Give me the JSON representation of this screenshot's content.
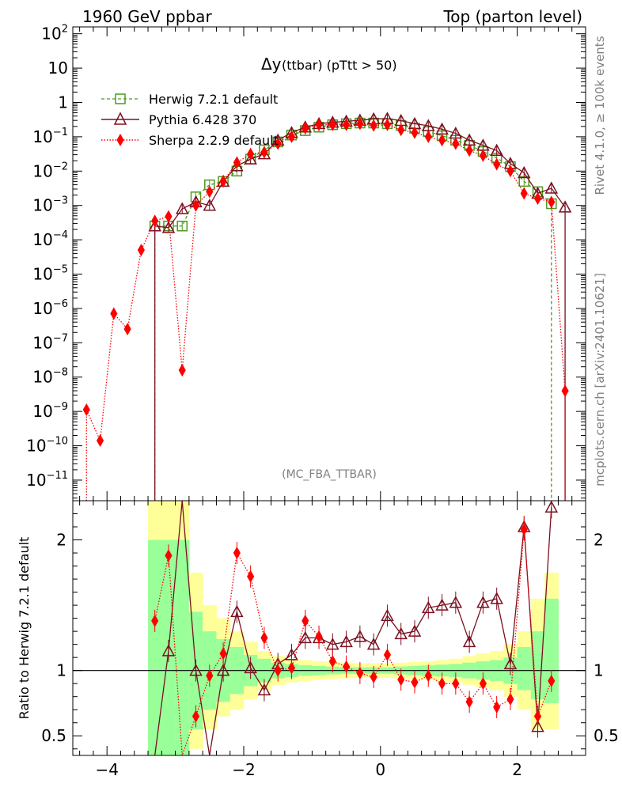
{
  "header": {
    "left": "1960 GeV ppbar",
    "right": "Top (parton level)"
  },
  "side": {
    "top": "Rivet 4.1.0, ≥ 100k events",
    "bottom": "mcplots.cern.ch [arXiv:2401.10621]"
  },
  "chart_data": [
    {
      "type": "line",
      "panel": "main",
      "title_main": "Δy",
      "title_sub": " (ttbar) (pTtt > 50)",
      "watermark": "(MC_FBA_TTBAR)",
      "yscale": "log",
      "xlim": [
        -4.5,
        3.0
      ],
      "ylim_log10": [
        -11.6,
        2.2
      ],
      "ytick_labels": [
        {
          "v": 2,
          "label": "10",
          "exp": "2"
        },
        {
          "v": 1,
          "label": "10",
          "exp": ""
        },
        {
          "v": 0,
          "label": "1",
          "exp": ""
        },
        {
          "v": -1,
          "label": "10",
          "exp": "−1"
        },
        {
          "v": -2,
          "label": "10",
          "exp": "−2"
        },
        {
          "v": -3,
          "label": "10",
          "exp": "−3"
        },
        {
          "v": -4,
          "label": "10",
          "exp": "−4"
        },
        {
          "v": -5,
          "label": "10",
          "exp": "−5"
        },
        {
          "v": -6,
          "label": "10",
          "exp": "−6"
        },
        {
          "v": -7,
          "label": "10",
          "exp": "−7"
        },
        {
          "v": -8,
          "label": "10",
          "exp": "−8"
        },
        {
          "v": -9,
          "label": "10",
          "exp": "−9"
        },
        {
          "v": -10,
          "label": "10",
          "exp": "−10"
        },
        {
          "v": -11,
          "label": "10",
          "exp": "−11"
        }
      ],
      "legend": [
        {
          "name": "Herwig 7.2.1 default",
          "color": "#4d9a1f",
          "marker": "square",
          "dash": "4,3"
        },
        {
          "name": "Pythia 6.428 370",
          "color": "#7b1020",
          "marker": "triangle",
          "dash": ""
        },
        {
          "name": "Sherpa 2.2.9 default",
          "color": "#ff0000",
          "marker": "diamond",
          "dash": "1.5,2"
        }
      ],
      "series": [
        {
          "name": "Herwig 7.2.1 default",
          "x": [
            -3.3,
            -3.1,
            -2.9,
            -2.7,
            -2.5,
            -2.3,
            -2.1,
            -1.9,
            -1.7,
            -1.5,
            -1.3,
            -1.1,
            -0.9,
            -0.7,
            -0.5,
            -0.3,
            -0.1,
            0.1,
            0.3,
            0.5,
            0.7,
            0.9,
            1.1,
            1.3,
            1.5,
            1.7,
            1.9,
            2.1,
            2.3,
            2.5
          ],
          "log10y": [
            -3.6,
            -3.6,
            -3.6,
            -2.75,
            -2.4,
            -2.3,
            -2.0,
            -1.65,
            -1.38,
            -1.15,
            -0.95,
            -0.82,
            -0.72,
            -0.65,
            -0.62,
            -0.6,
            -0.6,
            -0.62,
            -0.67,
            -0.75,
            -0.85,
            -0.97,
            -1.1,
            -1.25,
            -1.43,
            -1.62,
            -1.87,
            -2.3,
            -2.6,
            -2.95
          ]
        },
        {
          "name": "Pythia 6.428 370",
          "x": [
            -3.3,
            -3.1,
            -2.9,
            -2.7,
            -2.5,
            -2.3,
            -2.1,
            -1.9,
            -1.7,
            -1.5,
            -1.3,
            -1.1,
            -0.9,
            -0.7,
            -0.5,
            -0.3,
            -0.1,
            0.1,
            0.3,
            0.5,
            0.7,
            0.9,
            1.1,
            1.3,
            1.5,
            1.7,
            1.9,
            2.1,
            2.3,
            2.5,
            2.7
          ],
          "log10y": [
            -3.6,
            -3.65,
            -3.1,
            -2.9,
            -3.0,
            -2.3,
            -1.85,
            -1.65,
            -1.5,
            -1.1,
            -0.88,
            -0.72,
            -0.62,
            -0.58,
            -0.55,
            -0.52,
            -0.48,
            -0.47,
            -0.53,
            -0.62,
            -0.68,
            -0.78,
            -0.9,
            -1.1,
            -1.25,
            -1.4,
            -1.78,
            -2.05,
            -2.65,
            -2.5,
            -3.05
          ]
        },
        {
          "name": "Sherpa 2.2.9 default",
          "x": [
            -4.3,
            -4.1,
            -3.9,
            -3.7,
            -3.5,
            -3.3,
            -3.1,
            -2.9,
            -2.7,
            -2.5,
            -2.3,
            -2.1,
            -1.9,
            -1.7,
            -1.5,
            -1.3,
            -1.1,
            -0.9,
            -0.7,
            -0.5,
            -0.3,
            -0.1,
            0.1,
            0.3,
            0.5,
            0.7,
            0.9,
            1.1,
            1.3,
            1.5,
            1.7,
            1.9,
            2.1,
            2.3,
            2.5,
            2.7
          ],
          "log10y": [
            -8.95,
            -9.85,
            -6.15,
            -6.6,
            -4.3,
            -3.45,
            -3.32,
            -7.8,
            -3.0,
            -2.6,
            -2.3,
            -1.75,
            -1.5,
            -1.45,
            -1.2,
            -1.0,
            -0.75,
            -0.65,
            -0.65,
            -0.65,
            -0.62,
            -0.67,
            -0.65,
            -0.8,
            -0.88,
            -1.0,
            -1.1,
            -1.2,
            -1.4,
            -1.55,
            -1.8,
            -2.0,
            -2.65,
            -2.8,
            -2.9,
            -8.4
          ]
        }
      ]
    },
    {
      "type": "line",
      "panel": "ratio",
      "ylabel": "Ratio to Herwig 7.2.1 default",
      "xlim": [
        -4.5,
        3.0
      ],
      "ylim": [
        0.35,
        2.3
      ],
      "xtick_labels": [
        {
          "v": -4,
          "label": "−4"
        },
        {
          "v": -2,
          "label": "−2"
        },
        {
          "v": 0,
          "label": "0"
        },
        {
          "v": 2,
          "label": "2"
        }
      ],
      "ytick_labels": [
        {
          "v": 2,
          "label": "2"
        },
        {
          "v": 1,
          "label": "1"
        },
        {
          "v": 0.5,
          "label": "0.5"
        }
      ],
      "bands": {
        "edges": [
          -3.4,
          -3.2,
          -3.0,
          -2.8,
          -2.6,
          -2.4,
          -2.2,
          -2.0,
          -1.8,
          -1.6,
          -1.4,
          -1.2,
          -1.0,
          -0.8,
          -0.6,
          -0.4,
          -0.2,
          0.0,
          0.2,
          0.4,
          0.6,
          0.8,
          1.0,
          1.2,
          1.4,
          1.6,
          1.8,
          2.0,
          2.2,
          2.4,
          2.6
        ],
        "green_lo": [
          0.35,
          0.35,
          0.35,
          0.55,
          0.7,
          0.76,
          0.82,
          0.88,
          0.91,
          0.94,
          0.95,
          0.96,
          0.965,
          0.97,
          0.975,
          0.975,
          0.975,
          0.975,
          0.97,
          0.965,
          0.96,
          0.955,
          0.95,
          0.94,
          0.93,
          0.92,
          0.9,
          0.85,
          0.78,
          0.75
        ],
        "green_hi": [
          2.0,
          2.0,
          2.0,
          1.45,
          1.3,
          1.24,
          1.18,
          1.12,
          1.09,
          1.06,
          1.05,
          1.04,
          1.035,
          1.03,
          1.025,
          1.025,
          1.025,
          1.025,
          1.03,
          1.035,
          1.04,
          1.045,
          1.05,
          1.06,
          1.07,
          1.08,
          1.1,
          1.18,
          1.3,
          1.55
        ],
        "yellow_lo": [
          0.35,
          0.35,
          0.35,
          0.4,
          0.55,
          0.65,
          0.7,
          0.78,
          0.85,
          0.89,
          0.91,
          0.92,
          0.93,
          0.935,
          0.94,
          0.945,
          0.945,
          0.945,
          0.94,
          0.935,
          0.93,
          0.92,
          0.91,
          0.89,
          0.87,
          0.85,
          0.8,
          0.7,
          0.55,
          0.55
        ],
        "yellow_hi": [
          2.3,
          2.3,
          2.3,
          1.75,
          1.5,
          1.4,
          1.3,
          1.22,
          1.15,
          1.11,
          1.09,
          1.08,
          1.07,
          1.065,
          1.06,
          1.055,
          1.055,
          1.055,
          1.06,
          1.065,
          1.07,
          1.08,
          1.09,
          1.11,
          1.13,
          1.15,
          1.2,
          1.3,
          1.55,
          1.75
        ]
      },
      "series": [
        {
          "name": "Pythia 6.428 370",
          "x": [
            -3.3,
            -3.1,
            -2.9,
            -2.7,
            -2.5,
            -2.3,
            -2.1,
            -1.9,
            -1.7,
            -1.5,
            -1.3,
            -1.1,
            -0.9,
            -0.7,
            -0.5,
            -0.3,
            -0.1,
            0.1,
            0.3,
            0.5,
            0.7,
            0.9,
            1.1,
            1.3,
            1.5,
            1.7,
            1.9,
            2.1,
            2.3,
            2.5
          ],
          "y": [
            -0.3,
            1.15,
            2.8,
            1.0,
            0.1,
            1.0,
            1.45,
            1.02,
            0.85,
            1.05,
            1.12,
            1.25,
            1.25,
            1.2,
            1.22,
            1.26,
            1.2,
            1.42,
            1.28,
            1.3,
            1.48,
            1.5,
            1.52,
            1.22,
            1.52,
            1.55,
            1.05,
            2.1,
            0.57,
            2.25
          ]
        },
        {
          "name": "Sherpa 2.2.9 default",
          "x": [
            -3.3,
            -3.1,
            -2.9,
            -2.7,
            -2.5,
            -2.3,
            -2.1,
            -1.9,
            -1.7,
            -1.5,
            -1.3,
            -1.1,
            -0.9,
            -0.7,
            -0.5,
            -0.3,
            -0.1,
            0.1,
            0.3,
            0.5,
            0.7,
            0.9,
            1.1,
            1.3,
            1.5,
            1.7,
            1.9,
            2.1,
            2.3,
            2.5
          ],
          "y": [
            1.38,
            1.88,
            -0.2,
            0.65,
            0.96,
            1.13,
            1.9,
            1.72,
            1.25,
            1.0,
            1.02,
            1.38,
            1.26,
            1.07,
            1.03,
            0.98,
            0.95,
            1.12,
            0.93,
            0.91,
            0.96,
            0.9,
            0.9,
            0.76,
            0.9,
            0.72,
            0.78,
            2.08,
            0.65,
            0.92
          ]
        }
      ]
    }
  ]
}
